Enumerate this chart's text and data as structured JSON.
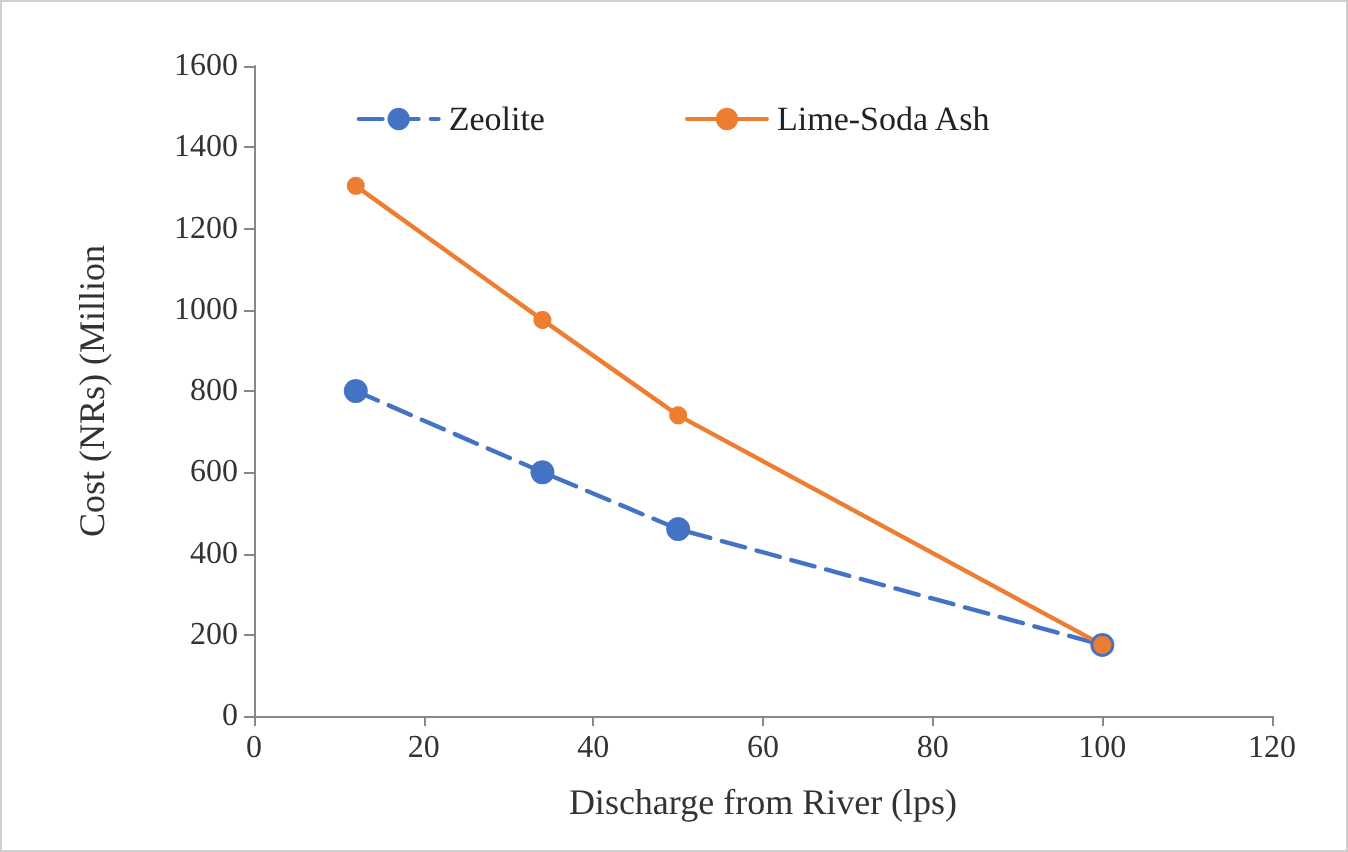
{
  "chart_data": {
    "type": "line",
    "xlabel": "Discharge from River (lps)",
    "ylabel": "Cost (NRs) (Million",
    "x": [
      12,
      34,
      50,
      100
    ],
    "series": [
      {
        "name": "Zeolite",
        "color": "#4472c4",
        "values": [
          800,
          600,
          460,
          175
        ],
        "line_style": "dashed"
      },
      {
        "name": "Lime-Soda Ash",
        "color": "#ed7d31",
        "values": [
          1305,
          975,
          740,
          175
        ],
        "line_style": "solid"
      }
    ],
    "xlim": [
      0,
      120
    ],
    "xticks": [
      0,
      20,
      40,
      60,
      80,
      100,
      120
    ],
    "ylim": [
      0,
      1600
    ],
    "yticks": [
      0,
      200,
      400,
      600,
      800,
      1000,
      1200,
      1400,
      1600
    ],
    "grid": false,
    "legend": "top",
    "marker": "circle"
  }
}
